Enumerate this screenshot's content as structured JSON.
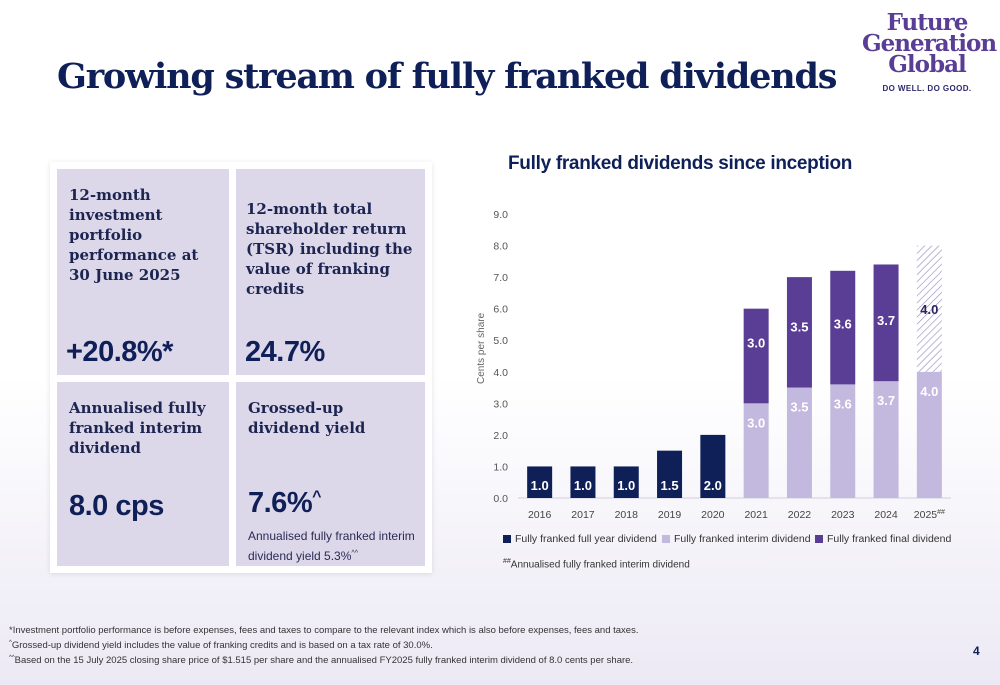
{
  "header": {
    "title": "Growing stream of fully franked dividends"
  },
  "logo": {
    "line1": "Future",
    "line2": "Generation",
    "line3": "Global",
    "tagline": "DO WELL. DO GOOD."
  },
  "cards": [
    {
      "label": "12-month investment portfolio performance at 30 June 2025",
      "value": "+20.8%*"
    },
    {
      "label": "12-month total shareholder return (TSR) including the value of franking credits",
      "value": "24.7%"
    },
    {
      "label": "Annualised fully franked interim dividend",
      "value": "8.0 cps"
    },
    {
      "label": "Grossed-up dividend yield",
      "value": "7.6%",
      "value_sup": "^",
      "note": "Annualised fully franked interim dividend yield 5.3%",
      "note_sup": "^^"
    }
  ],
  "chart_data": {
    "type": "bar",
    "stacked": true,
    "title": "Fully franked dividends since inception",
    "ylabel": "Cents per share",
    "ylim": [
      0,
      9
    ],
    "yticks": [
      "0.0",
      "1.0",
      "2.0",
      "3.0",
      "4.0",
      "5.0",
      "6.0",
      "7.0",
      "8.0",
      "9.0"
    ],
    "categories": [
      "2016",
      "2017",
      "2018",
      "2019",
      "2020",
      "2021",
      "2022",
      "2023",
      "2024",
      "2025"
    ],
    "category_suffix": {
      "2025": "##"
    },
    "series": [
      {
        "name": "Fully franked full year dividend",
        "color": "#0f1f57",
        "values": [
          1.0,
          1.0,
          1.0,
          1.5,
          2.0,
          null,
          null,
          null,
          null,
          null
        ]
      },
      {
        "name": "Fully franked interim dividend",
        "color": "#c3b9de",
        "values": [
          null,
          null,
          null,
          null,
          null,
          3.0,
          3.5,
          3.6,
          3.7,
          4.0
        ]
      },
      {
        "name": "Fully franked final dividend",
        "color": "#5a3e96",
        "values": [
          null,
          null,
          null,
          null,
          null,
          3.0,
          3.5,
          3.6,
          3.7,
          4.0
        ],
        "hatched_categories": [
          "2025"
        ]
      }
    ],
    "legend_note": "Annualised fully franked interim dividend",
    "legend_note_marker": "##",
    "grid": false
  },
  "footnotes": [
    {
      "marker": "",
      "text": "*Investment portfolio performance is before expenses, fees and taxes to compare to the relevant index which is also before expenses, fees and taxes."
    },
    {
      "marker": "^",
      "text": "Grossed-up dividend yield includes the value of franking credits and is based on a tax rate of 30.0%."
    },
    {
      "marker": "^^",
      "text": "Based on the 15 July 2025 closing share price of $1.515 per share and the annualised FY2025 fully franked interim dividend of 8.0 cents per share."
    }
  ],
  "page_number": "4"
}
